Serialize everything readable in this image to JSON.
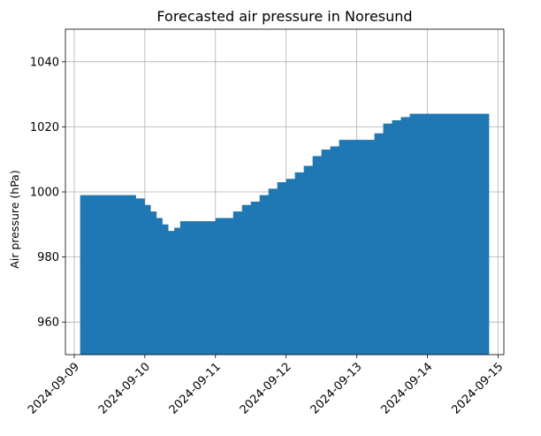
{
  "chart_data": {
    "type": "area",
    "title": "Forecasted air pressure in Noresund",
    "xlabel": "",
    "ylabel": "Air pressure (hPa)",
    "xlim": [
      "2024-09-08T21:00",
      "2024-09-15T02:00"
    ],
    "ylim": [
      950,
      1050
    ],
    "x_ticks": [
      "2024-09-09",
      "2024-09-10",
      "2024-09-11",
      "2024-09-12",
      "2024-09-13",
      "2024-09-14",
      "2024-09-15"
    ],
    "y_ticks": [
      960,
      980,
      1000,
      1020,
      1040
    ],
    "grid": true,
    "color": "#1f77b4",
    "baseline": 950,
    "series": [
      {
        "x": [
          "2024-09-09T02:00",
          "2024-09-09T21:00",
          "2024-09-10T00:00",
          "2024-09-10T02:00",
          "2024-09-10T04:00",
          "2024-09-10T06:00",
          "2024-09-10T08:00",
          "2024-09-10T10:00",
          "2024-09-10T12:00",
          "2024-09-10T15:00",
          "2024-09-10T18:00",
          "2024-09-10T21:00",
          "2024-09-11T00:00",
          "2024-09-11T03:00",
          "2024-09-11T06:00",
          "2024-09-11T09:00",
          "2024-09-11T12:00",
          "2024-09-11T15:00",
          "2024-09-11T18:00",
          "2024-09-11T21:00",
          "2024-09-12T00:00",
          "2024-09-12T03:00",
          "2024-09-12T06:00",
          "2024-09-12T09:00",
          "2024-09-12T12:00",
          "2024-09-12T15:00",
          "2024-09-12T18:00",
          "2024-09-12T21:00",
          "2024-09-13T00:00",
          "2024-09-13T03:00",
          "2024-09-13T06:00",
          "2024-09-13T09:00",
          "2024-09-13T12:00",
          "2024-09-13T15:00",
          "2024-09-13T18:00",
          "2024-09-13T21:00",
          "2024-09-14T00:00",
          "2024-09-14T21:00"
        ],
        "values": [
          999,
          998,
          996,
          994,
          992,
          990,
          988,
          989,
          991,
          991,
          991,
          991,
          992,
          992,
          994,
          996,
          997,
          999,
          1001,
          1003,
          1004,
          1006,
          1008,
          1011,
          1013,
          1014,
          1016,
          1016,
          1016,
          1016,
          1018,
          1021,
          1022,
          1023,
          1024,
          1024,
          1024,
          1024
        ]
      }
    ]
  }
}
